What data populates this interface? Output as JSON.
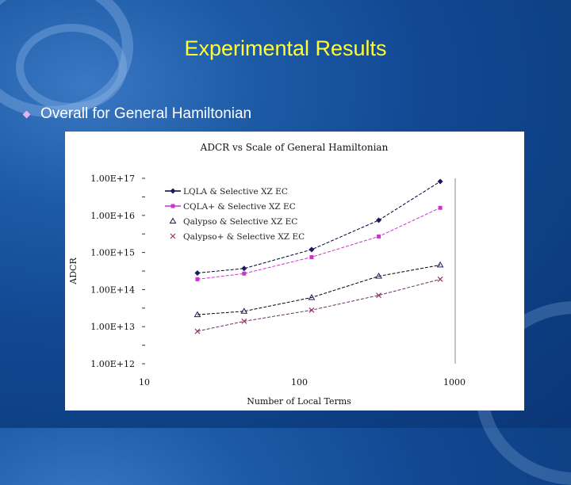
{
  "slide": {
    "title": "Experimental Results",
    "bullets": [
      {
        "text": "Overall for General Hamiltonian",
        "icon": "diamond-bullet-icon"
      }
    ],
    "colors": {
      "title": "#ffff33",
      "bullet_text": "#ffffff",
      "bullet_icon": "#e6b0f0",
      "background": "#124892"
    }
  },
  "chart_data": {
    "type": "line",
    "title": "ADCR vs Scale of General Hamiltonian",
    "xlabel": "Number of Local Terms",
    "ylabel": "ADCR",
    "xscale": "log",
    "yscale": "log",
    "xlim": [
      10,
      1000
    ],
    "ylim": [
      1000000000000.0,
      1e+17
    ],
    "x_ticks": [
      "10",
      "100",
      "1000"
    ],
    "y_ticks": [
      "1.00E+12",
      "1.00E+13",
      "1.00E+14",
      "1.00E+15",
      "1.00E+16",
      "1.00E+17"
    ],
    "x": [
      22,
      44,
      120,
      325,
      810
    ],
    "series": [
      {
        "name": "LQLA & Selective XZ EC",
        "color": "#1a1a5e",
        "marker": "diamond",
        "values": [
          280000000000000.0,
          370000000000000.0,
          1200000000000000.0,
          7400000000000000.0,
          8.2e+16
        ]
      },
      {
        "name": "CQLA+ & Selective XZ EC",
        "color": "#cc33cc",
        "marker": "square",
        "values": [
          190000000000000.0,
          270000000000000.0,
          750000000000000.0,
          2700000000000000.0,
          1.6e+16
        ]
      },
      {
        "name": "Qalypso & Selective XZ EC",
        "color": "#1a1a5e",
        "marker": "triangle",
        "values": [
          21000000000000.0,
          26000000000000.0,
          61000000000000.0,
          230000000000000.0,
          460000000000000.0
        ]
      },
      {
        "name": "Qalypso+ & Selective XZ EC",
        "color": "#993366",
        "marker": "x",
        "values": [
          7500000000000.0,
          14000000000000.0,
          28000000000000.0,
          70000000000000.0,
          190000000000000.0
        ]
      }
    ],
    "grid": false,
    "legend_position": "upper-left-inside"
  }
}
